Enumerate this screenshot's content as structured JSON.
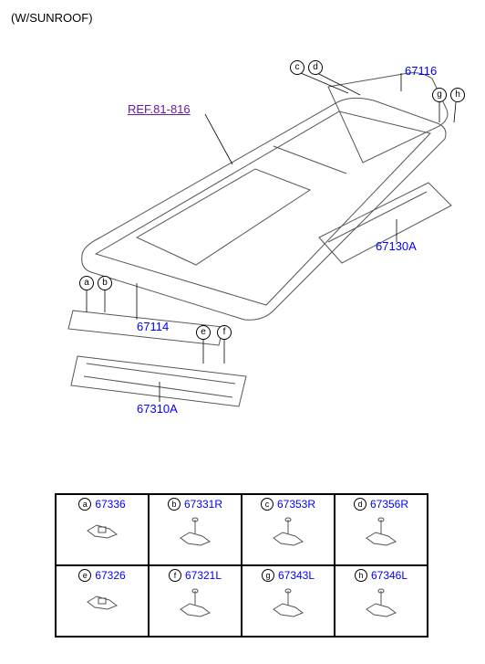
{
  "header": "(W/SUNROOF)",
  "ref_label": "REF.81-816",
  "main_labels": {
    "p67116": "67116",
    "p67130A": "67130A",
    "p67114": "67114",
    "p67310A": "67310A"
  },
  "callouts": {
    "a": "a",
    "b": "b",
    "c": "c",
    "d": "d",
    "e": "e",
    "f": "f",
    "g": "g",
    "h": "h"
  },
  "parts_table": {
    "rows": [
      [
        {
          "letter": "a",
          "pn": "67336",
          "icon": "clip-flat"
        },
        {
          "letter": "b",
          "pn": "67331R",
          "icon": "clip-pin"
        },
        {
          "letter": "c",
          "pn": "67353R",
          "icon": "clip-pin"
        },
        {
          "letter": "d",
          "pn": "67356R",
          "icon": "clip-pin"
        }
      ],
      [
        {
          "letter": "e",
          "pn": "67326",
          "icon": "clip-flat"
        },
        {
          "letter": "f",
          "pn": "67321L",
          "icon": "clip-pin"
        },
        {
          "letter": "g",
          "pn": "67343L",
          "icon": "clip-pin"
        },
        {
          "letter": "h",
          "pn": "67346L",
          "icon": "clip-pin"
        }
      ]
    ]
  },
  "colors": {
    "link": "#0000ff",
    "ref": "#6a1b9a",
    "line": "#000000",
    "bg": "#ffffff"
  },
  "diagram": {
    "roof_outline": "isometric car roof panel with sunroof opening and rails",
    "view": "exploded"
  }
}
